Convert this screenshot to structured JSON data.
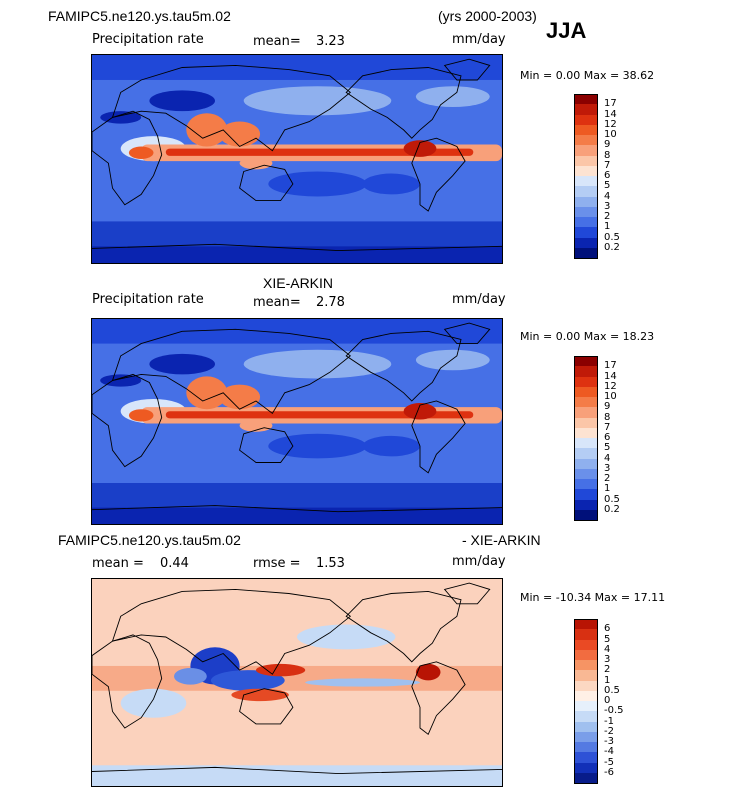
{
  "panel1": {
    "title_left": "FAMIPC5.ne120.ys.tau5m.02",
    "title_right": "(yrs 2000-2003)",
    "season": "JJA",
    "variable": "Precipitation rate",
    "mean_label": "mean=",
    "mean_value": "3.23",
    "units": "mm/day",
    "minmax": "Min =   0.00  Max =  38.62"
  },
  "panel2": {
    "title_center": "XIE-ARKIN",
    "variable": "Precipitation rate",
    "mean_label": "mean=",
    "mean_value": "2.78",
    "units": "mm/day",
    "minmax": "Min =   0.00  Max =  18.23"
  },
  "panel3": {
    "title_left": "FAMIPC5.ne120.ys.tau5m.02",
    "title_right": "- XIE-ARKIN",
    "mean_label": "mean =",
    "mean_value": "0.44",
    "rmse_label": "rmse =",
    "rmse_value": "1.53",
    "units": "mm/day",
    "minmax": "Min = -10.34  Max =  17.11"
  },
  "chart_data": [
    {
      "type": "heatmap",
      "title": "FAMIPC5.ne120.ys.tau5m.02 (yrs 2000-2003) JJA",
      "variable": "Precipitation rate",
      "units": "mm/day",
      "mean": 3.23,
      "min": 0.0,
      "max": 38.62,
      "colorbar_levels": [
        "17",
        "14",
        "12",
        "10",
        "9",
        "8",
        "7",
        "6",
        "5",
        "4",
        "3",
        "2",
        "1",
        "0.5",
        "0.2"
      ],
      "colors": [
        "#8b0000",
        "#c01a08",
        "#de3210",
        "#ee5a22",
        "#f47c48",
        "#f8a07a",
        "#fbc6a8",
        "#fde3d2",
        "#d8e6fa",
        "#b4cdf4",
        "#8fb0ee",
        "#6a90ea",
        "#4670e6",
        "#2048d8",
        "#0a24b0",
        "#00107a"
      ]
    },
    {
      "type": "heatmap",
      "title": "XIE-ARKIN",
      "variable": "Precipitation rate",
      "units": "mm/day",
      "mean": 2.78,
      "min": 0.0,
      "max": 18.23,
      "colorbar_levels": [
        "17",
        "14",
        "12",
        "10",
        "9",
        "8",
        "7",
        "6",
        "5",
        "4",
        "3",
        "2",
        "1",
        "0.5",
        "0.2"
      ],
      "colors": [
        "#8b0000",
        "#c01a08",
        "#de3210",
        "#ee5a22",
        "#f47c48",
        "#f8a07a",
        "#fbc6a8",
        "#fde3d2",
        "#d8e6fa",
        "#b4cdf4",
        "#8fb0ee",
        "#6a90ea",
        "#4670e6",
        "#2048d8",
        "#0a24b0",
        "#00107a"
      ]
    },
    {
      "type": "heatmap",
      "title": "FAMIPC5.ne120.ys.tau5m.02 - XIE-ARKIN",
      "units": "mm/day",
      "mean": 0.44,
      "rmse": 1.53,
      "min": -10.34,
      "max": 17.11,
      "colorbar_levels": [
        "6",
        "5",
        "4",
        "3",
        "2",
        "1",
        "0.5",
        "0",
        "-0.5",
        "-1",
        "-2",
        "-3",
        "-4",
        "-5",
        "-6"
      ],
      "colors": [
        "#b81404",
        "#d83012",
        "#ea4a24",
        "#f26c40",
        "#f69464",
        "#f9b894",
        "#fcd8c2",
        "#fff0e6",
        "#e6f0fb",
        "#c6dbf6",
        "#a0c0ef",
        "#7a9ee9",
        "#547ae2",
        "#2e52d6",
        "#1230b8",
        "#081c8a"
      ]
    }
  ]
}
